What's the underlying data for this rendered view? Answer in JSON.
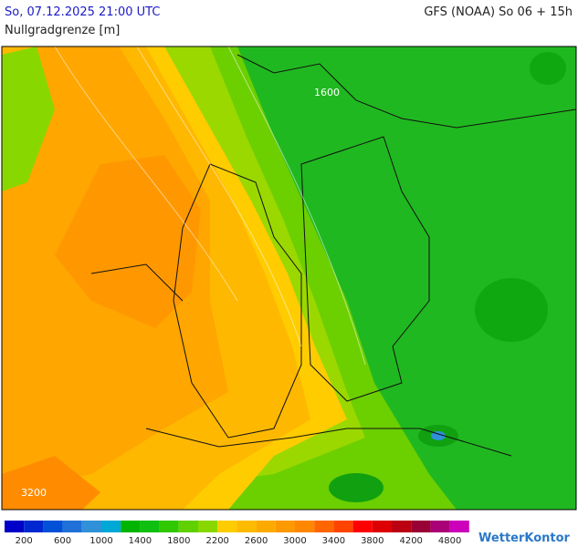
{
  "header": {
    "datetime": "So, 07.12.2025 21:00 UTC",
    "model": "GFS (NOAA) So 06 + 15h",
    "parameter": "Nullgradgrenze [m]"
  },
  "map": {
    "contour_labels": [
      "1600",
      "3200"
    ]
  },
  "legend": {
    "colors": [
      "#0000c8",
      "#0028d0",
      "#0050d8",
      "#2070d8",
      "#3090d8",
      "#00a8d8",
      "#00b400",
      "#10c010",
      "#30c800",
      "#60d000",
      "#88d800",
      "#ffcc00",
      "#ffbb00",
      "#ffaa00",
      "#ff9900",
      "#ff8800",
      "#ff6600",
      "#ff4400",
      "#ff0000",
      "#dd0000",
      "#bb0011",
      "#990033",
      "#aa0077",
      "#cc00bb"
    ],
    "labels": [
      "200",
      "600",
      "1000",
      "1400",
      "1800",
      "2200",
      "2600",
      "3000",
      "3400",
      "3800",
      "4200",
      "4800"
    ]
  },
  "brand": "WetterKontor"
}
